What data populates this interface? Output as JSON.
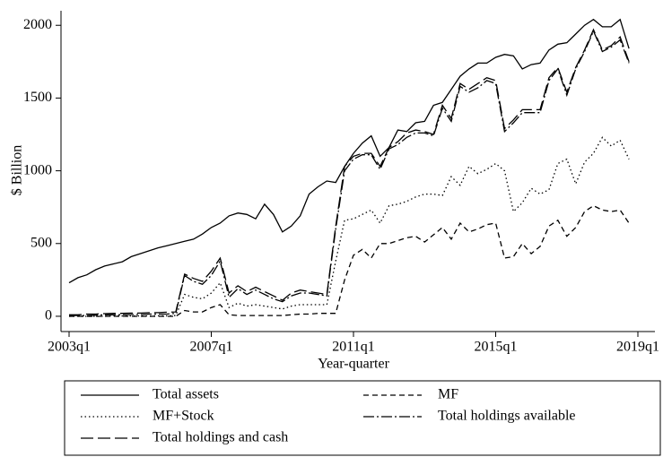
{
  "chart_data": {
    "type": "line",
    "xlabel": "Year-quarter",
    "ylabel": "$ Billion",
    "categories": [
      "2003q1",
      null,
      null,
      null,
      null,
      null,
      null,
      null,
      null,
      null,
      null,
      null,
      null,
      null,
      null,
      null,
      "2007q1",
      null,
      null,
      null,
      null,
      null,
      null,
      null,
      null,
      null,
      null,
      null,
      null,
      null,
      null,
      null,
      "2011q1",
      null,
      null,
      null,
      null,
      null,
      null,
      null,
      null,
      null,
      null,
      null,
      null,
      null,
      null,
      null,
      "2015q1",
      null,
      null,
      null,
      null,
      null,
      null,
      null,
      null,
      null,
      null,
      null,
      null,
      null,
      null,
      null,
      "2019q1"
    ],
    "ylim": [
      -105,
      2100
    ],
    "yticks": [
      0,
      500,
      1000,
      1500,
      2000
    ],
    "series": [
      {
        "name": "Total assets",
        "color": "#000000",
        "dash": "none",
        "values": [
          230,
          265,
          285,
          320,
          345,
          360,
          375,
          410,
          430,
          450,
          470,
          485,
          500,
          515,
          530,
          565,
          610,
          640,
          690,
          710,
          700,
          670,
          770,
          700,
          580,
          620,
          690,
          840,
          890,
          930,
          920,
          1030,
          1120,
          1190,
          1240,
          1100,
          1160,
          1280,
          1270,
          1330,
          1340,
          1450,
          1470,
          1560,
          1650,
          1700,
          1740,
          1740,
          1780,
          1800,
          1790,
          1700,
          1730,
          1740,
          1830,
          1870,
          1880,
          1940,
          2000,
          2040,
          1990,
          1990,
          2040,
          1840,
          null
        ]
      },
      {
        "name": "MF",
        "color": "#000000",
        "dash": "6 4",
        "values": [
          0,
          0,
          0,
          0,
          0,
          0,
          0,
          0,
          0,
          0,
          0,
          0,
          0,
          40,
          30,
          30,
          60,
          80,
          10,
          5,
          5,
          5,
          5,
          5,
          5,
          10,
          15,
          15,
          20,
          20,
          20,
          250,
          420,
          460,
          400,
          500,
          500,
          520,
          540,
          550,
          510,
          560,
          610,
          530,
          640,
          580,
          600,
          630,
          640,
          400,
          410,
          500,
          430,
          480,
          620,
          660,
          550,
          610,
          720,
          760,
          730,
          720,
          730,
          640,
          null
        ]
      },
      {
        "name": "MF+Stock",
        "color": "#000000",
        "dash": "1.5 3",
        "values": [
          0,
          0,
          0,
          0,
          0,
          2,
          2,
          2,
          2,
          2,
          3,
          3,
          5,
          150,
          130,
          120,
          160,
          230,
          60,
          90,
          70,
          80,
          70,
          60,
          50,
          70,
          80,
          80,
          80,
          80,
          380,
          660,
          670,
          700,
          730,
          640,
          760,
          770,
          790,
          820,
          840,
          840,
          830,
          960,
          900,
          1030,
          980,
          1010,
          1050,
          1000,
          720,
          780,
          880,
          840,
          870,
          1050,
          1080,
          910,
          1060,
          1120,
          1230,
          1170,
          1210,
          1080,
          null
        ]
      },
      {
        "name": "Total holdings available",
        "color": "#000000",
        "dash": "12 3 2 3",
        "values": [
          5,
          5,
          5,
          8,
          10,
          10,
          10,
          12,
          12,
          15,
          15,
          15,
          20,
          280,
          240,
          220,
          280,
          380,
          130,
          190,
          150,
          180,
          150,
          120,
          100,
          140,
          160,
          160,
          150,
          140,
          600,
          1000,
          1080,
          1110,
          1110,
          1010,
          1150,
          1180,
          1230,
          1260,
          1260,
          1240,
          1430,
          1340,
          1580,
          1540,
          1570,
          1620,
          1600,
          1270,
          1330,
          1400,
          1400,
          1400,
          1620,
          1700,
          1520,
          1700,
          1820,
          1960,
          1820,
          1850,
          1900,
          1740,
          null
        ]
      },
      {
        "name": "Total holdings and cash",
        "color": "#000000",
        "dash": "14 5",
        "values": [
          10,
          10,
          15,
          15,
          18,
          20,
          20,
          22,
          22,
          25,
          25,
          28,
          30,
          290,
          260,
          240,
          310,
          400,
          160,
          210,
          170,
          200,
          170,
          140,
          110,
          160,
          180,
          170,
          160,
          150,
          620,
          1030,
          1100,
          1120,
          1120,
          1030,
          1160,
          1200,
          1260,
          1280,
          1270,
          1250,
          1450,
          1360,
          1600,
          1560,
          1600,
          1640,
          1620,
          1290,
          1350,
          1420,
          1420,
          1420,
          1640,
          1710,
          1540,
          1710,
          1830,
          1970,
          1830,
          1860,
          1920,
          1750,
          null
        ]
      }
    ]
  }
}
